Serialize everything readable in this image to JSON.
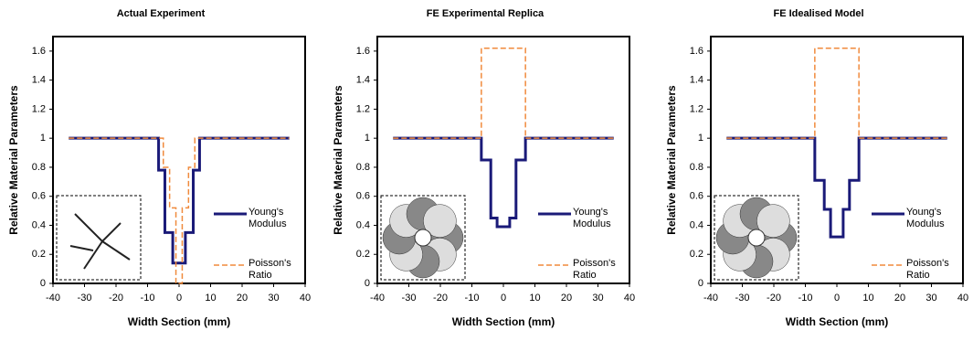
{
  "chart_data": [
    {
      "type": "line",
      "title": "Actual Experiment",
      "x_label": "Width Section (mm)",
      "y_label": "Relative Material Parameters",
      "xlim": [
        -40,
        40
      ],
      "ylim": [
        0,
        1.7
      ],
      "xticks": [
        -40,
        -30,
        -20,
        -10,
        0,
        10,
        20,
        30,
        40
      ],
      "yticks": [
        0,
        0.2,
        0.4,
        0.6,
        0.8,
        1,
        1.2,
        1.4,
        1.6
      ],
      "series": [
        {
          "name": "Young's Modulus",
          "color": "#1a1a78",
          "style": "solid",
          "x": [
            -35,
            -6.5,
            -6.5,
            -4.5,
            -4.5,
            -2,
            -2,
            2,
            2,
            4.5,
            4.5,
            6.5,
            6.5,
            35
          ],
          "values": [
            1,
            1,
            0.78,
            0.78,
            0.35,
            0.35,
            0.14,
            0.14,
            0.35,
            0.35,
            0.78,
            0.78,
            1,
            1
          ]
        },
        {
          "name": "Poisson's Ratio",
          "color": "#f08a3c",
          "style": "dashed",
          "x": [
            -35,
            -5,
            -5,
            -3,
            -3,
            -1,
            -1,
            1,
            1,
            3,
            3,
            5,
            5,
            35
          ],
          "values": [
            1,
            1,
            0.8,
            0.8,
            0.52,
            0.52,
            0,
            0,
            0.52,
            0.52,
            0.8,
            0.8,
            1,
            1
          ]
        }
      ]
    },
    {
      "type": "line",
      "title": "FE Experimental Replica",
      "x_label": "Width Section (mm)",
      "y_label": "Relative Material Parameters",
      "xlim": [
        -40,
        40
      ],
      "ylim": [
        0,
        1.7
      ],
      "xticks": [
        -40,
        -30,
        -20,
        -10,
        0,
        10,
        20,
        30,
        40
      ],
      "yticks": [
        0,
        0.2,
        0.4,
        0.6,
        0.8,
        1,
        1.2,
        1.4,
        1.6
      ],
      "series": [
        {
          "name": "Young's Modulus",
          "color": "#1a1a78",
          "style": "solid",
          "x": [
            -35,
            -7,
            -7,
            -4,
            -4,
            -2,
            -2,
            2,
            2,
            4,
            4,
            7,
            7,
            35
          ],
          "values": [
            1,
            1,
            0.85,
            0.85,
            0.45,
            0.45,
            0.39,
            0.39,
            0.45,
            0.45,
            0.85,
            0.85,
            1,
            1
          ]
        },
        {
          "name": "Poisson's Ratio",
          "color": "#f08a3c",
          "style": "dashed",
          "x": [
            -35,
            -7,
            -7,
            7,
            7,
            35
          ],
          "values": [
            1,
            1,
            1.62,
            1.62,
            1,
            1
          ]
        }
      ]
    },
    {
      "type": "line",
      "title": "FE Idealised Model",
      "x_label": "Width Section (mm)",
      "y_label": "Relative Material Parameters",
      "xlim": [
        -40,
        40
      ],
      "ylim": [
        0,
        1.7
      ],
      "xticks": [
        -40,
        -30,
        -20,
        -10,
        0,
        10,
        20,
        30,
        40
      ],
      "yticks": [
        0,
        0.2,
        0.4,
        0.6,
        0.8,
        1,
        1.2,
        1.4,
        1.6
      ],
      "series": [
        {
          "name": "Young's Modulus",
          "color": "#1a1a78",
          "style": "solid",
          "x": [
            -35,
            -7,
            -7,
            -4,
            -4,
            -2,
            -2,
            2,
            2,
            4,
            4,
            7,
            7,
            35
          ],
          "values": [
            1,
            1,
            0.71,
            0.71,
            0.51,
            0.51,
            0.32,
            0.32,
            0.51,
            0.51,
            0.71,
            0.71,
            1,
            1
          ]
        },
        {
          "name": "Poisson's Ratio",
          "color": "#f08a3c",
          "style": "dashed",
          "x": [
            -35,
            -7,
            -7,
            7,
            7,
            35
          ],
          "values": [
            1,
            1,
            1.62,
            1.62,
            1,
            1
          ]
        }
      ]
    }
  ]
}
